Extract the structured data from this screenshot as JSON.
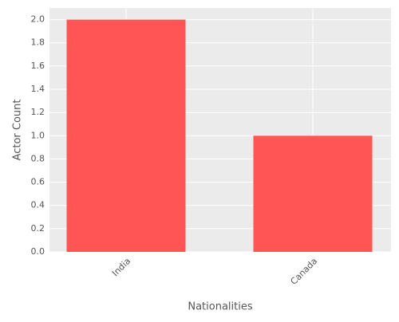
{
  "chart_data": {
    "type": "bar",
    "x_label": "Nationalities",
    "y_label": "Actor Count",
    "categories": [
      "India",
      "Canada"
    ],
    "values": [
      2,
      1
    ],
    "color": "#ff5555",
    "ylim": [
      0,
      2.1
    ],
    "yticks": [
      {
        "value": 0,
        "label": "0.0"
      },
      {
        "value": 0.2,
        "label": "0.2"
      },
      {
        "value": 0.4,
        "label": "0.4"
      },
      {
        "value": 0.6,
        "label": "0.6"
      },
      {
        "value": 0.8,
        "label": "0.8"
      },
      {
        "value": 1,
        "label": "1.0"
      },
      {
        "value": 1.2,
        "label": "1.2"
      },
      {
        "value": 1.4,
        "label": "1.4"
      },
      {
        "value": 1.6,
        "label": "1.6"
      },
      {
        "value": 1.8,
        "label": "1.8"
      },
      {
        "value": 2,
        "label": "2.0"
      }
    ],
    "grid": true
  }
}
